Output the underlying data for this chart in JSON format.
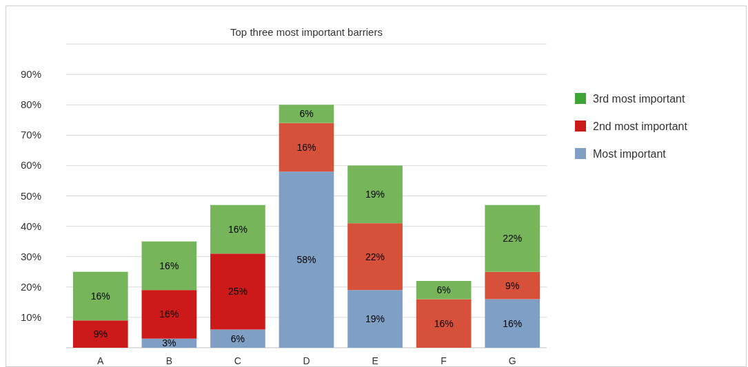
{
  "chart_data": {
    "type": "bar",
    "title": "Top three most important barriers",
    "stacked": true,
    "categories": [
      "A",
      "B",
      "C",
      "D",
      "E",
      "F",
      "G"
    ],
    "series": [
      {
        "name": "Most important",
        "color": "#7f9fc5",
        "colors": [
          null,
          "#7f9fc5",
          "#7f9fc5",
          "#7f9fc5",
          "#7f9fc5",
          null,
          "#7f9fc5"
        ],
        "values": [
          null,
          3,
          6,
          58,
          19,
          null,
          16
        ],
        "value_labels": [
          null,
          "3%",
          "6%",
          "58%",
          "19%",
          null,
          "16%"
        ]
      },
      {
        "name": "2nd most important",
        "color": "#cc1a1a",
        "colors": [
          "#cc1a1a",
          "#cc1a1a",
          "#cc1a1a",
          "#d6503a",
          "#d6503a",
          "#d6503a",
          "#d6503a"
        ],
        "values": [
          9,
          16,
          25,
          16,
          22,
          16,
          9
        ],
        "value_labels": [
          "9%",
          "16%",
          "25%",
          "16%",
          "22%",
          "16%",
          "9%"
        ]
      },
      {
        "name": "3rd most important",
        "color": "#3fa535",
        "colors": [
          "#77b55a",
          "#77b55a",
          "#77b55a",
          "#77b55a",
          "#77b55a",
          "#77b55a",
          "#77b55a"
        ],
        "values": [
          16,
          16,
          16,
          6,
          19,
          6,
          22
        ],
        "value_labels": [
          "16%",
          "16%",
          "16%",
          "6%",
          "19%",
          "6%",
          "22%"
        ]
      }
    ],
    "ylim": [
      0,
      100
    ],
    "yticks": [
      {
        "value": 0,
        "label": null
      },
      {
        "value": 10,
        "label": "10%"
      },
      {
        "value": 20,
        "label": "20%"
      },
      {
        "value": 30,
        "label": "30%"
      },
      {
        "value": 40,
        "label": "40%"
      },
      {
        "value": 50,
        "label": "50%"
      },
      {
        "value": 60,
        "label": "60%"
      },
      {
        "value": 70,
        "label": "70%"
      },
      {
        "value": 80,
        "label": "80%"
      },
      {
        "value": 90,
        "label": "90%"
      },
      {
        "value": 100,
        "label": null
      }
    ],
    "grid": true,
    "legend": "right"
  }
}
